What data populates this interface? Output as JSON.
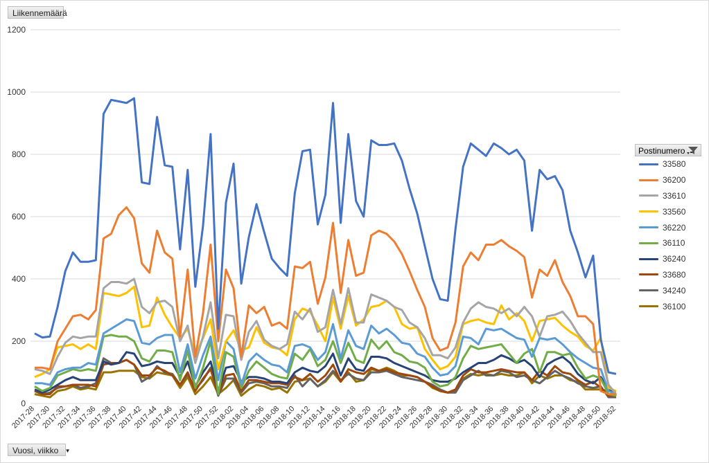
{
  "measure_label": "Liikennemäärä",
  "axis_field_label": "Vuosi, viikko",
  "legend_title": "Postinumero",
  "icons": {
    "filter": "filter-icon",
    "dropdown": "dropdown-arrow-icon"
  },
  "chart_data": {
    "type": "line",
    "title": "",
    "xlabel": "",
    "ylabel": "",
    "ylim": [
      0,
      1200
    ],
    "yticks": [
      0,
      200,
      400,
      600,
      800,
      1000,
      1200
    ],
    "grid": true,
    "legend_position": "right",
    "x_tick_labels_shown": [
      "2017-28",
      "2017-30",
      "2017-32",
      "2017-34",
      "2017-36",
      "2017-38",
      "2017-40",
      "2017-42",
      "2017-44",
      "2017-46",
      "2017-48",
      "2017-50",
      "2017-52",
      "2018-02",
      "2018-04",
      "2018-06",
      "2018-08",
      "2018-10",
      "2018-12",
      "2018-14",
      "2018-16",
      "2018-18",
      "2018-20",
      "2018-22",
      "2018-24",
      "2018-26",
      "2018-28",
      "2018-30",
      "2018-32",
      "2018-34",
      "2018-36",
      "2018-38",
      "2018-40",
      "2018-42",
      "2018-44",
      "2018-46",
      "2018-48",
      "2018-50",
      "2018-52"
    ],
    "categories": [
      "2017-28",
      "2017-29",
      "2017-30",
      "2017-31",
      "2017-32",
      "2017-33",
      "2017-34",
      "2017-35",
      "2017-36",
      "2017-37",
      "2017-38",
      "2017-39",
      "2017-40",
      "2017-41",
      "2017-42",
      "2017-43",
      "2017-44",
      "2017-45",
      "2017-46",
      "2017-47",
      "2017-48",
      "2017-49",
      "2017-50",
      "2017-51",
      "2017-52",
      "2018-01",
      "2018-02",
      "2018-03",
      "2018-04",
      "2018-05",
      "2018-06",
      "2018-07",
      "2018-08",
      "2018-09",
      "2018-10",
      "2018-11",
      "2018-12",
      "2018-13",
      "2018-14",
      "2018-15",
      "2018-16",
      "2018-17",
      "2018-18",
      "2018-19",
      "2018-20",
      "2018-21",
      "2018-22",
      "2018-23",
      "2018-24",
      "2018-25",
      "2018-26",
      "2018-27",
      "2018-28",
      "2018-29",
      "2018-30",
      "2018-31",
      "2018-32",
      "2018-33",
      "2018-34",
      "2018-35",
      "2018-36",
      "2018-37",
      "2018-38",
      "2018-39",
      "2018-40",
      "2018-41",
      "2018-42",
      "2018-43",
      "2018-44",
      "2018-45",
      "2018-46",
      "2018-47",
      "2018-48",
      "2018-49",
      "2018-50",
      "2018-51",
      "2018-52"
    ],
    "series": [
      {
        "name": "33580",
        "color": "#4472c4",
        "values": [
          225,
          212,
          215,
          310,
          425,
          485,
          455,
          455,
          460,
          930,
          975,
          970,
          965,
          980,
          710,
          705,
          920,
          765,
          760,
          495,
          750,
          375,
          570,
          865,
          240,
          645,
          770,
          385,
          535,
          640,
          550,
          465,
          435,
          410,
          675,
          810,
          815,
          575,
          670,
          965,
          580,
          865,
          650,
          600,
          845,
          830,
          830,
          835,
          780,
          690,
          610,
          505,
          400,
          335,
          330,
          560,
          760,
          835,
          815,
          795,
          835,
          820,
          800,
          815,
          780,
          555,
          750,
          720,
          730,
          685,
          555,
          485,
          405,
          475,
          205,
          100,
          95
        ]
      },
      {
        "name": "36200",
        "color": "#ed7d31",
        "values": [
          115,
          115,
          110,
          200,
          240,
          280,
          285,
          270,
          300,
          530,
          545,
          605,
          630,
          595,
          450,
          420,
          555,
          485,
          465,
          215,
          430,
          150,
          290,
          510,
          200,
          430,
          370,
          150,
          315,
          290,
          310,
          250,
          260,
          240,
          440,
          435,
          455,
          320,
          405,
          580,
          355,
          525,
          410,
          420,
          540,
          555,
          545,
          520,
          480,
          425,
          365,
          310,
          210,
          170,
          180,
          260,
          440,
          485,
          460,
          510,
          510,
          525,
          505,
          490,
          470,
          340,
          430,
          410,
          460,
          390,
          345,
          280,
          280,
          255,
          40,
          30,
          30
        ]
      },
      {
        "name": "33610",
        "color": "#a5a5a5",
        "values": [
          110,
          105,
          95,
          150,
          195,
          215,
          210,
          215,
          215,
          370,
          390,
          390,
          385,
          400,
          310,
          290,
          325,
          330,
          310,
          200,
          250,
          130,
          215,
          325,
          145,
          285,
          280,
          140,
          230,
          265,
          205,
          185,
          175,
          190,
          295,
          270,
          305,
          230,
          245,
          365,
          255,
          370,
          260,
          260,
          350,
          340,
          330,
          310,
          300,
          260,
          245,
          210,
          155,
          155,
          145,
          180,
          260,
          305,
          325,
          310,
          305,
          290,
          305,
          280,
          310,
          280,
          215,
          280,
          285,
          295,
          265,
          225,
          195,
          165,
          165,
          60,
          30
        ]
      },
      {
        "name": "33560",
        "color": "#ffc000",
        "values": [
          85,
          95,
          110,
          180,
          185,
          190,
          175,
          190,
          175,
          355,
          350,
          345,
          355,
          375,
          245,
          250,
          340,
          285,
          245,
          210,
          240,
          155,
          210,
          270,
          110,
          200,
          235,
          170,
          180,
          245,
          195,
          180,
          175,
          155,
          270,
          305,
          295,
          250,
          200,
          340,
          240,
          345,
          250,
          270,
          310,
          315,
          330,
          310,
          255,
          240,
          245,
          175,
          140,
          110,
          120,
          150,
          255,
          265,
          270,
          260,
          255,
          315,
          270,
          290,
          265,
          200,
          265,
          270,
          275,
          250,
          230,
          215,
          185,
          170,
          210,
          50,
          40
        ]
      },
      {
        "name": "36220",
        "color": "#5b9bd5",
        "values": [
          65,
          65,
          60,
          100,
          110,
          115,
          115,
          130,
          125,
          225,
          240,
          255,
          270,
          265,
          195,
          190,
          210,
          220,
          220,
          100,
          190,
          80,
          155,
          215,
          75,
          200,
          175,
          60,
          135,
          160,
          140,
          125,
          120,
          100,
          185,
          190,
          180,
          140,
          165,
          255,
          145,
          235,
          185,
          175,
          250,
          225,
          240,
          220,
          195,
          190,
          160,
          150,
          115,
          90,
          95,
          120,
          215,
          210,
          190,
          240,
          235,
          240,
          225,
          210,
          205,
          150,
          210,
          205,
          210,
          190,
          165,
          145,
          130,
          115,
          110,
          40,
          30
        ]
      },
      {
        "name": "36110",
        "color": "#70ad47",
        "values": [
          55,
          40,
          50,
          90,
          100,
          110,
          105,
          110,
          105,
          215,
          220,
          215,
          215,
          200,
          145,
          135,
          170,
          170,
          165,
          75,
          170,
          50,
          115,
          200,
          30,
          165,
          150,
          50,
          105,
          135,
          115,
          95,
          85,
          80,
          160,
          140,
          175,
          120,
          140,
          200,
          130,
          195,
          140,
          130,
          205,
          175,
          200,
          165,
          155,
          135,
          130,
          115,
          70,
          55,
          60,
          85,
          145,
          185,
          175,
          180,
          185,
          190,
          160,
          130,
          160,
          175,
          100,
          165,
          165,
          155,
          160,
          115,
          80,
          90,
          80,
          30,
          25
        ]
      },
      {
        "name": "36240",
        "color": "#264478",
        "values": [
          45,
          35,
          45,
          60,
          75,
          85,
          75,
          75,
          75,
          135,
          125,
          130,
          165,
          160,
          120,
          125,
          135,
          130,
          130,
          85,
          135,
          55,
          100,
          135,
          40,
          115,
          120,
          70,
          85,
          85,
          80,
          70,
          70,
          65,
          100,
          115,
          105,
          100,
          120,
          160,
          90,
          145,
          110,
          105,
          150,
          150,
          145,
          130,
          120,
          110,
          100,
          90,
          75,
          70,
          70,
          80,
          100,
          115,
          130,
          130,
          140,
          155,
          145,
          130,
          140,
          120,
          85,
          125,
          140,
          150,
          130,
          95,
          75,
          65,
          85,
          45,
          25
        ]
      },
      {
        "name": "33680",
        "color": "#9e480e",
        "values": [
          40,
          30,
          30,
          55,
          55,
          60,
          60,
          60,
          55,
          125,
          130,
          130,
          140,
          125,
          90,
          90,
          115,
          105,
          90,
          60,
          100,
          40,
          80,
          110,
          30,
          90,
          95,
          40,
          75,
          75,
          70,
          65,
          65,
          60,
          85,
          75,
          95,
          70,
          90,
          125,
          70,
          110,
          100,
          95,
          115,
          105,
          110,
          100,
          95,
          90,
          85,
          70,
          55,
          40,
          35,
          45,
          90,
          110,
          100,
          100,
          105,
          110,
          105,
          100,
          100,
          75,
          105,
          90,
          120,
          100,
          95,
          75,
          60,
          70,
          50,
          25,
          25
        ]
      },
      {
        "name": "34240",
        "color": "#636363",
        "values": [
          40,
          30,
          35,
          50,
          55,
          60,
          50,
          55,
          65,
          145,
          130,
          130,
          140,
          125,
          70,
          85,
          120,
          100,
          95,
          60,
          95,
          45,
          75,
          115,
          25,
          80,
          80,
          35,
          65,
          70,
          65,
          55,
          55,
          50,
          90,
          55,
          80,
          55,
          75,
          105,
          75,
          95,
          80,
          75,
          100,
          100,
          105,
          95,
          85,
          80,
          75,
          70,
          60,
          45,
          35,
          35,
          75,
          90,
          105,
          90,
          90,
          105,
          100,
          85,
          90,
          75,
          65,
          85,
          105,
          90,
          80,
          65,
          55,
          50,
          55,
          20,
          20
        ]
      },
      {
        "name": "36100",
        "color": "#997300",
        "values": [
          30,
          25,
          20,
          40,
          45,
          55,
          45,
          50,
          45,
          100,
          100,
          105,
          105,
          105,
          85,
          80,
          100,
          95,
          90,
          50,
          85,
          30,
          55,
          85,
          30,
          50,
          75,
          25,
          45,
          60,
          55,
          45,
          50,
          35,
          70,
          75,
          80,
          55,
          70,
          100,
          70,
          100,
          70,
          75,
          110,
          105,
          115,
          105,
          90,
          90,
          85,
          70,
          50,
          40,
          35,
          40,
          80,
          95,
          90,
          95,
          90,
          95,
          90,
          90,
          100,
          65,
          90,
          80,
          90,
          90,
          75,
          70,
          45,
          45,
          45,
          40,
          40
        ]
      }
    ]
  }
}
